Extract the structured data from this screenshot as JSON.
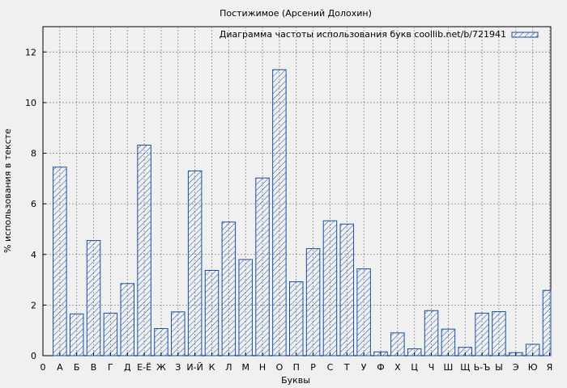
{
  "chart_data": {
    "type": "bar",
    "title": "Постижимое (Арсений Долохин)",
    "xlabel": "Буквы",
    "ylabel": "% использования в тексте",
    "legend": "Диаграмма частоты использования букв coollib.net/b/721941",
    "legend_position": "top-right",
    "grid": true,
    "ylim": [
      0,
      13
    ],
    "yticks": [
      0,
      2,
      4,
      6,
      8,
      10,
      12
    ],
    "x_origin_label": "0",
    "categories": [
      "А",
      "Б",
      "В",
      "Г",
      "Д",
      "Е-Ё",
      "Ж",
      "З",
      "И-Й",
      "К",
      "Л",
      "М",
      "Н",
      "О",
      "П",
      "Р",
      "С",
      "Т",
      "У",
      "Ф",
      "Х",
      "Ц",
      "Ч",
      "Ш",
      "Щ",
      "Ь-Ъ",
      "Ы",
      "Э",
      "Ю",
      "Я"
    ],
    "values": [
      7.45,
      1.65,
      4.55,
      1.68,
      2.85,
      8.32,
      1.07,
      1.73,
      7.3,
      3.37,
      5.28,
      3.8,
      7.02,
      11.3,
      2.92,
      4.23,
      5.33,
      5.2,
      3.43,
      0.15,
      0.9,
      0.27,
      1.78,
      1.05,
      0.33,
      1.68,
      1.74,
      0.12,
      0.45,
      2.58
    ],
    "colors": {
      "bar": "#1a4fa0",
      "background": "#f0f0f0",
      "plot": "#f0f0f0",
      "grid": "#888888"
    }
  }
}
